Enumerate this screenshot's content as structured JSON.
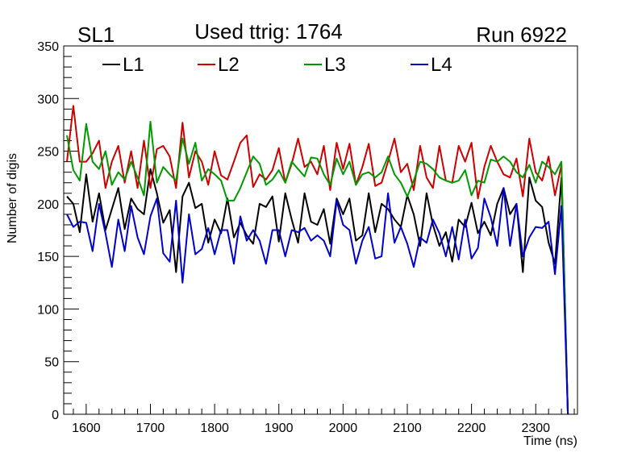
{
  "chart_data": {
    "type": "line",
    "titles": {
      "left": "SL1",
      "center": "Used ttrig: 1764",
      "right": "Run 6922"
    },
    "xlabel": "Time (ns)",
    "ylabel": "Number of digis",
    "xlim": [
      1565,
      2365
    ],
    "ylim": [
      0,
      350
    ],
    "xticks": [
      1600,
      1700,
      1800,
      1900,
      2000,
      2100,
      2200,
      2300
    ],
    "yticks": [
      0,
      50,
      100,
      150,
      200,
      250,
      300,
      350
    ],
    "x_start": 1570,
    "x_step": 10,
    "legend": [
      "L1",
      "L2",
      "L3",
      "L4"
    ],
    "series": [
      {
        "name": "L1",
        "color": "#000000",
        "values": [
          207,
          200,
          173,
          228,
          183,
          210,
          175,
          195,
          215,
          176,
          205,
          195,
          190,
          233,
          210,
          182,
          194,
          135,
          207,
          220,
          196,
          200,
          163,
          185,
          172,
          205,
          168,
          182,
          170,
          162,
          200,
          197,
          207,
          164,
          210,
          185,
          163,
          210,
          183,
          180,
          195,
          162,
          205,
          190,
          205,
          165,
          170,
          210,
          173,
          200,
          195,
          185,
          178,
          208,
          190,
          160,
          210,
          180,
          160,
          173,
          145,
          185,
          178,
          201,
          172,
          183,
          170,
          200,
          215,
          190,
          200,
          135,
          225,
          203,
          197,
          163,
          143,
          225,
          0
        ]
      },
      {
        "name": "L2",
        "color": "#cc0000",
        "values": [
          240,
          293,
          240,
          240,
          248,
          260,
          215,
          240,
          255,
          220,
          250,
          215,
          260,
          215,
          252,
          255,
          245,
          215,
          277,
          225,
          250,
          240,
          218,
          250,
          227,
          223,
          240,
          258,
          265,
          216,
          228,
          223,
          232,
          253,
          220,
          238,
          262,
          235,
          240,
          228,
          255,
          213,
          258,
          233,
          257,
          218,
          235,
          257,
          217,
          220,
          240,
          262,
          230,
          238,
          213,
          255,
          225,
          215,
          255,
          222,
          220,
          255,
          240,
          258,
          205,
          235,
          255,
          240,
          228,
          225,
          243,
          207,
          262,
          230,
          222,
          245,
          208,
          237,
          0
        ]
      },
      {
        "name": "L3",
        "color": "#009900",
        "values": [
          265,
          232,
          222,
          276,
          240,
          233,
          250,
          218,
          230,
          223,
          240,
          225,
          208,
          278,
          220,
          235,
          228,
          222,
          262,
          238,
          258,
          222,
          233,
          228,
          222,
          203,
          203,
          215,
          230,
          245,
          238,
          218,
          223,
          232,
          220,
          240,
          233,
          226,
          244,
          243,
          228,
          218,
          243,
          228,
          240,
          218,
          228,
          230,
          225,
          230,
          245,
          228,
          220,
          207,
          222,
          240,
          238,
          233,
          225,
          222,
          220,
          222,
          232,
          208,
          222,
          220,
          242,
          240,
          245,
          240,
          230,
          225,
          237,
          220,
          240,
          235,
          228,
          240,
          0
        ]
      },
      {
        "name": "L4",
        "color": "#0000cc",
        "values": [
          190,
          178,
          183,
          182,
          155,
          200,
          172,
          140,
          185,
          155,
          198,
          168,
          152,
          188,
          205,
          153,
          145,
          203,
          125,
          190,
          152,
          157,
          177,
          152,
          175,
          175,
          143,
          188,
          165,
          175,
          165,
          143,
          175,
          175,
          150,
          175,
          173,
          177,
          165,
          170,
          165,
          150,
          203,
          180,
          175,
          143,
          165,
          178,
          148,
          150,
          210,
          163,
          178,
          162,
          140,
          168,
          163,
          185,
          172,
          150,
          178,
          147,
          185,
          148,
          158,
          205,
          187,
          160,
          215,
          160,
          200,
          150,
          168,
          178,
          177,
          183,
          133,
          198,
          0
        ]
      }
    ]
  }
}
